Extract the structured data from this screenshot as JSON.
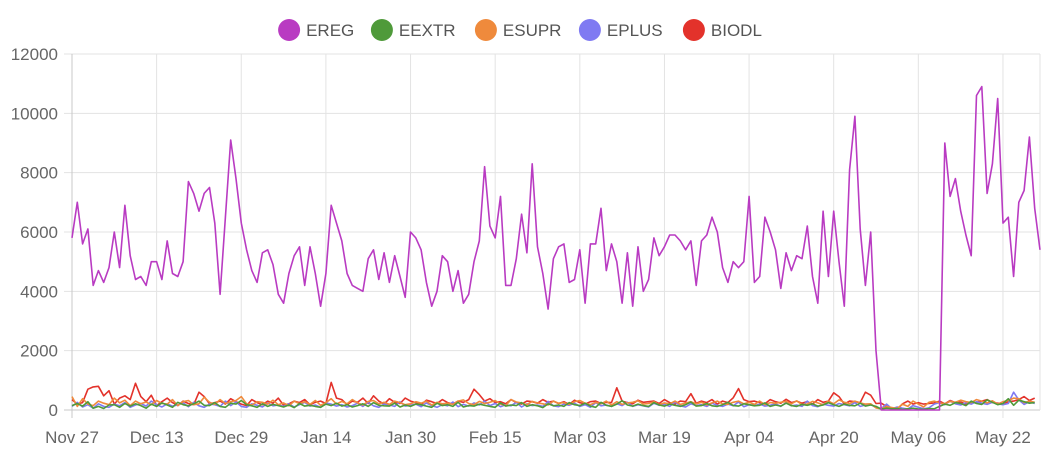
{
  "chart_data": {
    "type": "line",
    "title": "",
    "xlabel": "",
    "ylabel": "",
    "ylim": [
      0,
      12000
    ],
    "y_ticks": [
      0,
      2000,
      4000,
      6000,
      8000,
      10000,
      12000
    ],
    "x_start": "Nov 27",
    "x_tick_labels": [
      "Nov 27",
      "Dec 13",
      "Dec 29",
      "Jan 14",
      "Jan 30",
      "Feb 15",
      "Mar 03",
      "Mar 19",
      "Apr 04",
      "Apr 20",
      "May 06",
      "May 22"
    ],
    "x_tick_step_days": 16,
    "grid": true,
    "legend_position": "top",
    "series": [
      {
        "name": "EREG",
        "color": "#b93bc2",
        "values": [
          5800,
          7000,
          5600,
          6100,
          4200,
          4700,
          4300,
          4800,
          6000,
          4800,
          6900,
          5200,
          4400,
          4500,
          4200,
          5000,
          5000,
          4400,
          5700,
          4600,
          4500,
          5000,
          7700,
          7300,
          6700,
          7300,
          7500,
          6300,
          3900,
          6500,
          9100,
          7800,
          6300,
          5400,
          4700,
          4300,
          5300,
          5400,
          4900,
          3900,
          3600,
          4600,
          5200,
          5500,
          4200,
          5500,
          4600,
          3500,
          4600,
          6900,
          6300,
          5700,
          4600,
          4200,
          4100,
          4000,
          5100,
          5400,
          4400,
          5300,
          4300,
          5200,
          4500,
          3800,
          6000,
          5800,
          5400,
          4300,
          3500,
          4000,
          5200,
          5000,
          4000,
          4700,
          3600,
          3900,
          5000,
          5700,
          8200,
          6200,
          5800,
          7200,
          4200,
          4200,
          5100,
          6600,
          5300,
          8300,
          5500,
          4600,
          3400,
          5100,
          5500,
          5600,
          4300,
          4400,
          5400,
          3600,
          5600,
          5600,
          6800,
          4700,
          5600,
          5000,
          3600,
          5300,
          3500,
          5500,
          4000,
          4400,
          5800,
          5200,
          5500,
          5900,
          5900,
          5700,
          5400,
          5700,
          4200,
          5700,
          5900,
          6500,
          6000,
          4800,
          4300,
          5000,
          4800,
          5000,
          7200,
          4300,
          4500,
          6500,
          6000,
          5400,
          4100,
          5300,
          4700,
          5200,
          5100,
          6200,
          4500,
          3600,
          6700,
          4500,
          6700,
          5000,
          3500,
          8100,
          9900,
          6100,
          4200,
          6000,
          2000,
          0,
          0,
          0,
          0,
          0,
          0,
          0,
          0,
          0,
          0,
          0,
          0,
          9000,
          7200,
          7800,
          6700,
          5900,
          5200,
          10600,
          10900,
          7300,
          8300,
          10500,
          6300,
          6500,
          4500,
          7000,
          7400,
          9200,
          6800,
          5400
        ]
      },
      {
        "name": "EEXTR",
        "color": "#4f9a3a",
        "values": [
          150,
          220,
          130,
          280,
          60,
          120,
          50,
          170,
          180,
          90,
          220,
          130,
          210,
          150,
          60,
          200,
          120,
          240,
          170,
          90,
          260,
          180,
          140,
          210,
          300,
          160,
          150,
          250,
          120,
          90,
          230,
          200,
          320,
          180,
          140,
          90,
          210,
          120,
          190,
          150,
          100,
          170,
          80,
          220,
          130,
          160,
          120,
          90,
          200,
          150,
          230,
          130,
          180,
          100,
          150,
          210,
          120,
          250,
          160,
          140,
          130,
          230,
          100,
          170,
          120,
          200,
          180,
          130,
          90,
          230,
          150,
          180,
          120,
          260,
          100,
          150,
          130,
          200,
          160,
          120,
          90,
          240,
          130,
          170,
          150,
          250,
          120,
          180,
          140,
          80,
          210,
          140,
          170,
          120,
          250,
          180,
          150,
          230,
          130,
          90,
          260,
          160,
          120,
          200,
          310,
          170,
          130,
          200,
          150,
          120,
          250,
          170,
          130,
          200,
          160,
          120,
          180,
          270,
          130,
          150,
          220,
          140,
          120,
          180,
          260,
          150,
          130,
          210,
          180,
          140,
          160,
          240,
          120,
          170,
          130,
          230,
          150,
          120,
          190,
          160,
          210,
          130,
          170,
          250,
          180,
          120,
          200,
          160,
          140,
          230,
          130,
          170,
          120,
          30,
          60,
          40,
          50,
          20,
          40,
          60,
          30,
          20,
          50,
          40,
          120,
          200,
          160,
          250,
          220,
          150,
          300,
          220,
          190,
          340,
          260,
          180,
          220,
          380,
          160,
          330,
          280,
          230,
          250
        ]
      },
      {
        "name": "ESUPR",
        "color": "#ef8a3c",
        "values": [
          450,
          120,
          380,
          200,
          150,
          300,
          230,
          180,
          400,
          240,
          330,
          150,
          300,
          210,
          270,
          180,
          320,
          220,
          200,
          350,
          150,
          280,
          320,
          180,
          210,
          430,
          260,
          190,
          350,
          220,
          280,
          320,
          450,
          210,
          170,
          280,
          260,
          200,
          330,
          180,
          240,
          140,
          300,
          210,
          280,
          190,
          320,
          160,
          250,
          380,
          200,
          290,
          210,
          350,
          240,
          170,
          290,
          320,
          210,
          260,
          190,
          300,
          250,
          180,
          210,
          280,
          230,
          300,
          170,
          260,
          210,
          230,
          190,
          300,
          340,
          220,
          180,
          290,
          220,
          260,
          320,
          200,
          150,
          350,
          270,
          240,
          180,
          290,
          240,
          210,
          170,
          300,
          230,
          250,
          190,
          280,
          320,
          230,
          180,
          260,
          210,
          300,
          170,
          280,
          190,
          240,
          260,
          310,
          200,
          220,
          280,
          180,
          240,
          210,
          300,
          190,
          230,
          280,
          210,
          260,
          170,
          240,
          300,
          210,
          190,
          260,
          300,
          210,
          260,
          190,
          300,
          180,
          250,
          230,
          260,
          290,
          210,
          310,
          180,
          200,
          290,
          240,
          180,
          300,
          210,
          340,
          260,
          220,
          300,
          240,
          200,
          210,
          70,
          40,
          110,
          80,
          50,
          200,
          120,
          300,
          200,
          100,
          260,
          300,
          240,
          210,
          290,
          260,
          330,
          280,
          250,
          350,
          300,
          240,
          310,
          200,
          280,
          320,
          400,
          380,
          250,
          300,
          260
        ]
      },
      {
        "name": "EPLUS",
        "color": "#7f7af2",
        "values": [
          120,
          260,
          100,
          180,
          60,
          210,
          120,
          90,
          200,
          140,
          250,
          90,
          170,
          220,
          130,
          300,
          180,
          100,
          210,
          130,
          170,
          240,
          110,
          260,
          140,
          90,
          200,
          180,
          120,
          300,
          150,
          270,
          120,
          90,
          210,
          160,
          100,
          230,
          140,
          170,
          120,
          210,
          100,
          180,
          260,
          130,
          170,
          90,
          240,
          200,
          130,
          180,
          100,
          150,
          230,
          120,
          260,
          140,
          90,
          200,
          170,
          120,
          280,
          130,
          160,
          200,
          110,
          240,
          150,
          90,
          180,
          140,
          270,
          110,
          190,
          130,
          240,
          170,
          300,
          150,
          220,
          110,
          180,
          140,
          260,
          100,
          210,
          150,
          170,
          120,
          290,
          140,
          110,
          200,
          160,
          230,
          120,
          180,
          90,
          250,
          140,
          170,
          120,
          210,
          150,
          260,
          120,
          180,
          140,
          100,
          230,
          160,
          190,
          120,
          270,
          140,
          100,
          210,
          150,
          180,
          120,
          230,
          160,
          120,
          200,
          140,
          270,
          110,
          180,
          150,
          200,
          130,
          160,
          210,
          120,
          250,
          140,
          170,
          120,
          300,
          150,
          110,
          200,
          160,
          130,
          220,
          180,
          140,
          250,
          120,
          170,
          190,
          80,
          50,
          200,
          40,
          100,
          60,
          30,
          150,
          90,
          40,
          70,
          200,
          250,
          180,
          300,
          210,
          170,
          250,
          200,
          280,
          230,
          190,
          260,
          210,
          180,
          220,
          600,
          340,
          190,
          280,
          220
        ]
      },
      {
        "name": "BIODL",
        "color": "#e3322b",
        "values": [
          350,
          200,
          250,
          700,
          780,
          800,
          480,
          650,
          200,
          400,
          480,
          350,
          900,
          450,
          280,
          500,
          150,
          280,
          400,
          250,
          150,
          300,
          220,
          180,
          600,
          450,
          210,
          250,
          300,
          200,
          380,
          280,
          200,
          150,
          350,
          250,
          180,
          300,
          230,
          400,
          160,
          210,
          300,
          250,
          350,
          180,
          260,
          300,
          220,
          930,
          400,
          350,
          180,
          300,
          260,
          400,
          220,
          480,
          300,
          200,
          380,
          260,
          220,
          400,
          300,
          250,
          180,
          330,
          280,
          220,
          350,
          250,
          200,
          300,
          260,
          350,
          700,
          520,
          300,
          380,
          250,
          280,
          210,
          350,
          250,
          200,
          300,
          280,
          230,
          350,
          260,
          300,
          220,
          280,
          190,
          330,
          250,
          200,
          280,
          300,
          220,
          260,
          250,
          750,
          300,
          250,
          210,
          330,
          260,
          280,
          300,
          220,
          350,
          250,
          200,
          300,
          280,
          550,
          230,
          300,
          250,
          350,
          200,
          300,
          250,
          410,
          720,
          350,
          280,
          300,
          250,
          210,
          350,
          280,
          230,
          360,
          250,
          300,
          230,
          280,
          200,
          350,
          260,
          300,
          580,
          450,
          200,
          300,
          280,
          250,
          600,
          500,
          220,
          230,
          120,
          50,
          20,
          210,
          300,
          200,
          250,
          200,
          220,
          240,
          300,
          210,
          320,
          250,
          270,
          200,
          240,
          260,
          300,
          350,
          250,
          230,
          200,
          280,
          300,
          350,
          450,
          320,
          400
        ]
      }
    ]
  }
}
